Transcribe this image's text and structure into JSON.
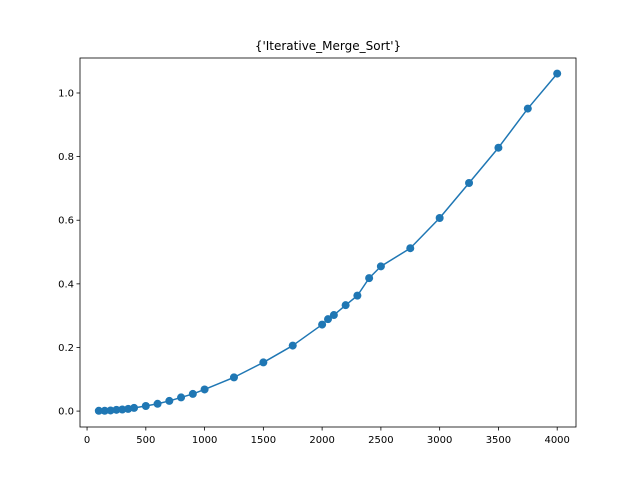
{
  "chart_data": {
    "type": "line",
    "title": "{'Iterative_Merge_Sort'}",
    "xlabel": "",
    "ylabel": "",
    "xlim": [
      -60,
      4160
    ],
    "ylim": [
      -0.05,
      1.11
    ],
    "xticks": [
      0,
      500,
      1000,
      1500,
      2000,
      2500,
      3000,
      3500,
      4000
    ],
    "xtick_labels": [
      "0",
      "500",
      "1000",
      "1500",
      "2000",
      "2500",
      "3000",
      "3500",
      "4000"
    ],
    "yticks": [
      0.0,
      0.2,
      0.4,
      0.6,
      0.8,
      1.0
    ],
    "ytick_labels": [
      "0.0",
      "0.2",
      "0.4",
      "0.6",
      "0.8",
      "1.0"
    ],
    "grid": false,
    "legend": false,
    "series": [
      {
        "color": "#1f77b4",
        "marker": "circle",
        "x": [
          100,
          150,
          200,
          250,
          300,
          350,
          400,
          500,
          600,
          700,
          800,
          900,
          1000,
          1250,
          1500,
          1750,
          2000,
          2050,
          2100,
          2200,
          2300,
          2400,
          2500,
          2750,
          3000,
          3250,
          3500,
          3750,
          4000
        ],
        "y": [
          0.001,
          0.001,
          0.002,
          0.004,
          0.005,
          0.007,
          0.01,
          0.016,
          0.023,
          0.032,
          0.043,
          0.054,
          0.068,
          0.106,
          0.153,
          0.206,
          0.272,
          0.289,
          0.302,
          0.333,
          0.363,
          0.418,
          0.455,
          0.512,
          0.607,
          0.717,
          0.828,
          0.951,
          1.061
        ]
      }
    ]
  }
}
